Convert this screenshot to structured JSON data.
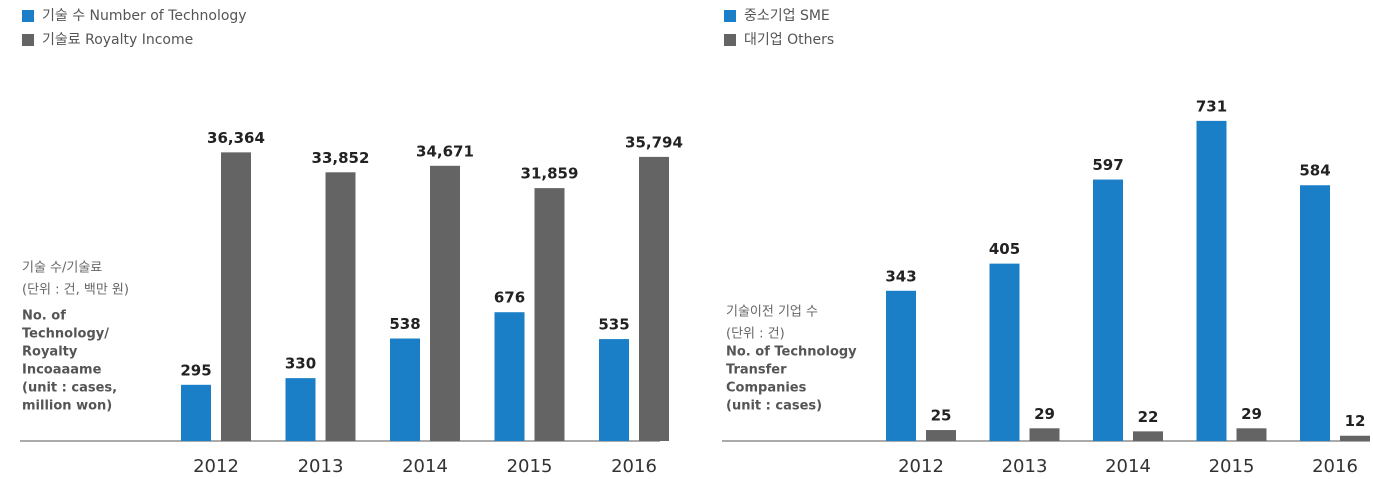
{
  "chart_data": [
    {
      "type": "bar",
      "categories": [
        "2012",
        "2013",
        "2014",
        "2015",
        "2016"
      ],
      "series": [
        {
          "name": "기술 수 Number of Technology",
          "color": "#1a7fc6",
          "values": [
            295,
            330,
            538,
            676,
            535
          ]
        },
        {
          "name": "기술료 Royalty Income",
          "color": "#646464",
          "axis": "y2",
          "values": [
            36364,
            33852,
            34671,
            31859,
            35794
          ],
          "value_labels": [
            "36,364",
            "33,852",
            "34,671",
            "31,859",
            "35,794"
          ]
        }
      ],
      "ylim": [
        0,
        2000
      ],
      "y2lim": [
        0,
        48000
      ],
      "axis_label": {
        "ko": [
          "기술 수/기술료",
          "(단위 : 건, 백만 원)"
        ],
        "en": [
          "No. of",
          "Technology/",
          "Royalty",
          "Incoaaame",
          "(unit : cases,",
          "million won)"
        ]
      }
    },
    {
      "type": "bar",
      "categories": [
        "2012",
        "2013",
        "2014",
        "2015",
        "2016"
      ],
      "series": [
        {
          "name": "중소기업 SME",
          "color": "#1a7fc6",
          "values": [
            343,
            405,
            597,
            731,
            584
          ]
        },
        {
          "name": "대기업 Others",
          "color": "#646464",
          "values": [
            25,
            29,
            22,
            29,
            12
          ]
        }
      ],
      "ylim": [
        0,
        870
      ],
      "axis_label": {
        "ko": [
          "기술이전 기업 수",
          "(단위 : 건)"
        ],
        "en": [
          "No. of Technology",
          "Transfer",
          "Companies",
          "(unit : cases)"
        ]
      }
    }
  ]
}
